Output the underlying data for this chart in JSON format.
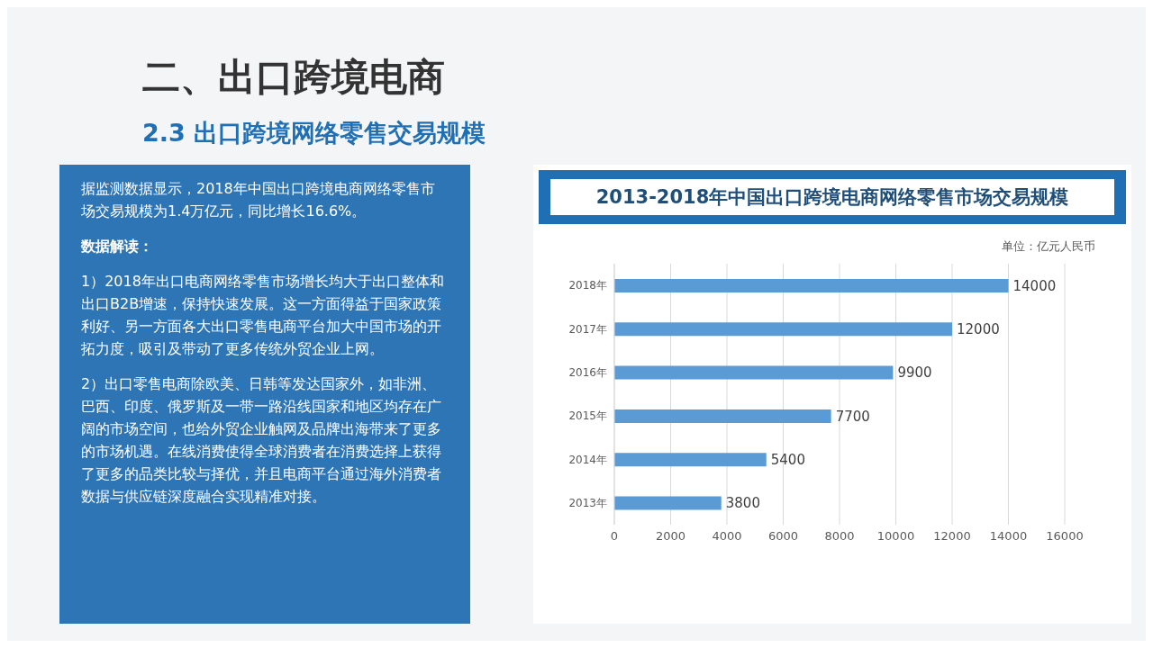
{
  "chart_data": {
    "type": "bar",
    "orientation": "horizontal",
    "title": "2013-2018年中国出口跨境电商网络零售市场交易规模",
    "categories": [
      "2018年",
      "2017年",
      "2016年",
      "2015年",
      "2014年",
      "2013年"
    ],
    "values": [
      14000,
      12000,
      9900,
      7700,
      5400,
      3800
    ],
    "color": "#5b9bd5",
    "data_labels": true,
    "grid": "x",
    "legend": false,
    "xlim": [
      0,
      16000
    ],
    "xticks": [
      0,
      2000,
      4000,
      6000,
      8000,
      10000,
      12000,
      14000,
      16000
    ],
    "annotations": [
      "二、出口跨境电商",
      "2.3 出口跨境网络零售交易规模",
      "据监测数据显示，2018年中国出口跨境电商网络零售市场交易规模为1.4万亿元，同比增长16.6%。",
      "数据解读：",
      "1）2018年出口电商网络零售市场增长均大于出口整体和出口B2B增速，保持快速发展。这一方面得益于国家政策利好、另一方面各大出口零售电商平台加大中国市场的开拓力度，吸引及带动了更多传统外贸企业上网。",
      "2）出口零售电商除欧美、日韩等发达国家外，如非洲、巴西、印度、俄罗斯及一带一路沿线国家和地区均存在广阔的市场空间，也给外贸企业触网及品牌出海带来了更多的市场机遇。在线消费使得全球消费者在消费选择上获得了更多的品类比较与择优，并且电商平台通过海外消费者数据与供应链深度融合实现精准对接。",
      "单位：亿元人民币"
    ]
  }
}
